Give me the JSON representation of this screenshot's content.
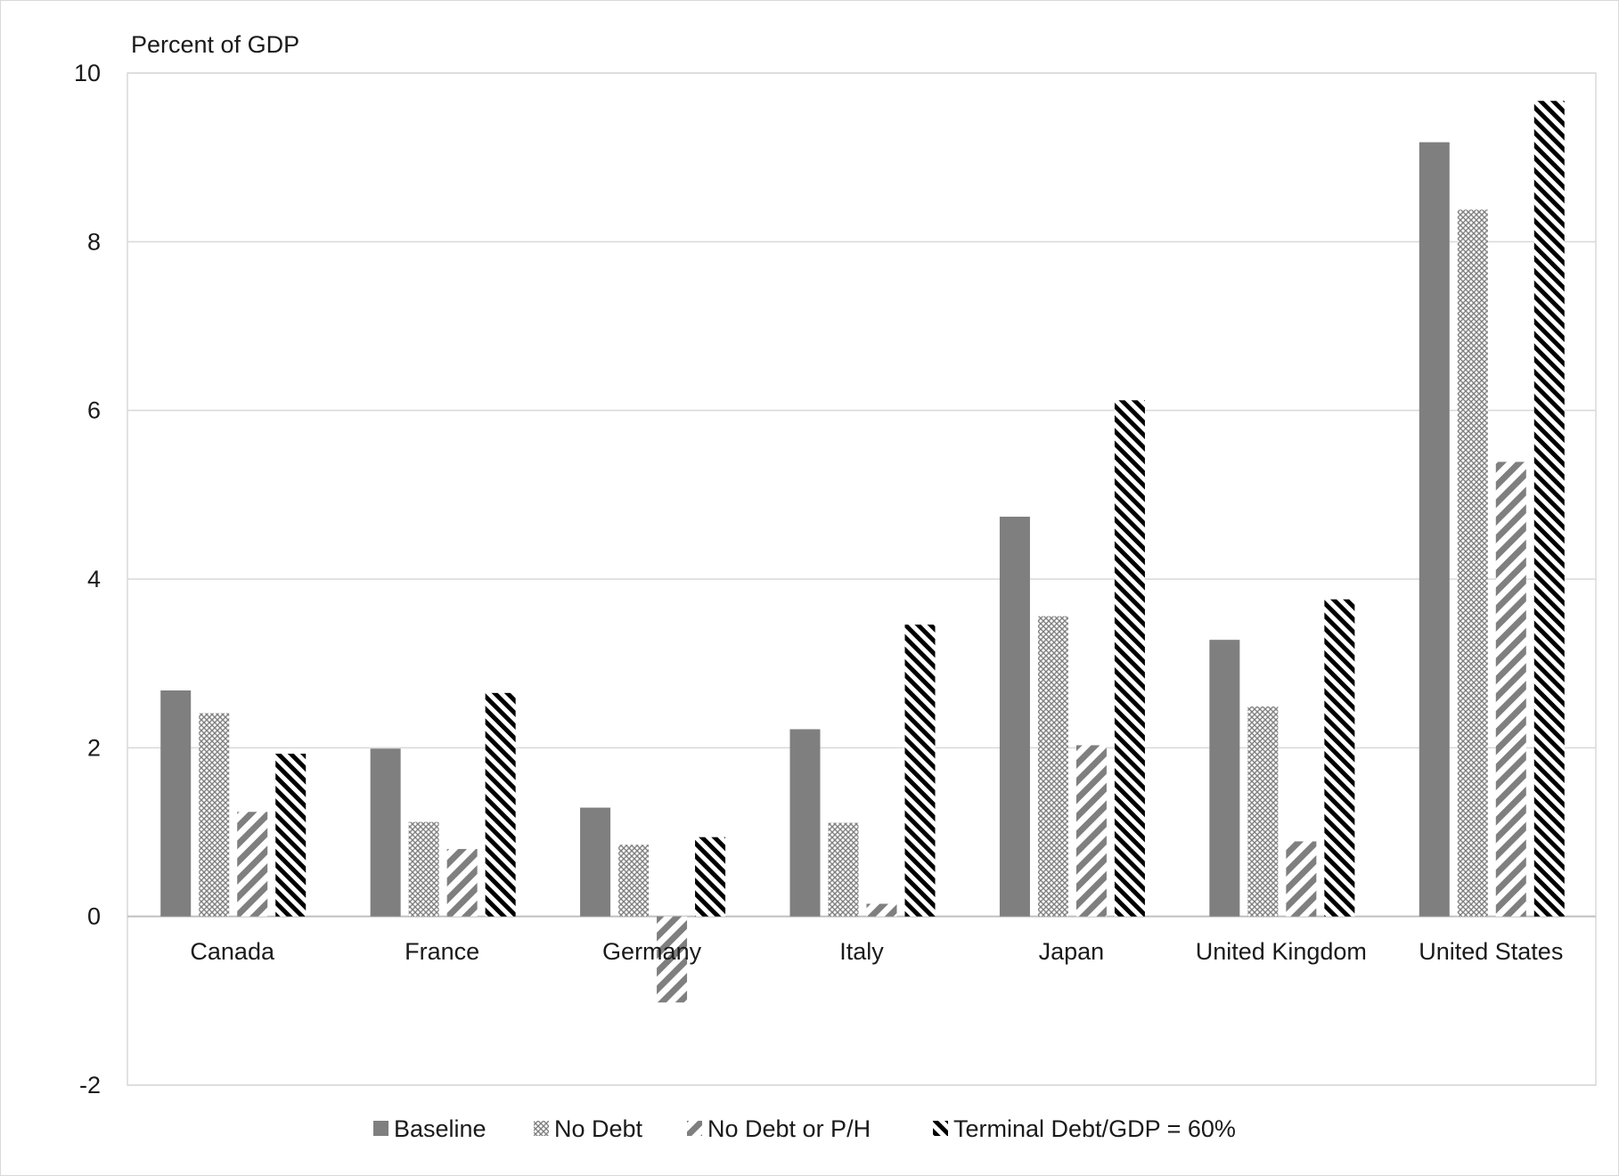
{
  "chart_data": {
    "type": "bar",
    "title": "",
    "xlabel": "",
    "ylabel": "Percent of GDP",
    "ylim": [
      -2,
      10
    ],
    "yticks": [
      -2,
      0,
      2,
      4,
      6,
      8,
      10
    ],
    "grid": true,
    "legend_position": "bottom",
    "categories": [
      "Canada",
      "France",
      "Germany",
      "Italy",
      "Japan",
      "United Kingdom",
      "United States"
    ],
    "series": [
      {
        "name": "Baseline",
        "values": [
          2.68,
          1.99,
          1.29,
          2.22,
          4.74,
          3.28,
          9.18
        ],
        "pattern": "solid",
        "color": "#7f7f7f"
      },
      {
        "name": "No Debt",
        "values": [
          2.41,
          1.12,
          0.85,
          1.11,
          3.56,
          2.49,
          8.38
        ],
        "pattern": "crosshatch",
        "color": "#7f7f7f"
      },
      {
        "name": "No Debt or P/H",
        "values": [
          1.24,
          0.8,
          -1.02,
          0.15,
          2.03,
          0.89,
          5.39
        ],
        "pattern": "diagonal-gray",
        "color": "#7f7f7f"
      },
      {
        "name": "Terminal Debt/GDP = 60%",
        "values": [
          1.93,
          2.65,
          0.94,
          3.46,
          6.12,
          3.76,
          9.67
        ],
        "pattern": "diagonal-black",
        "color": "#000000"
      }
    ]
  }
}
